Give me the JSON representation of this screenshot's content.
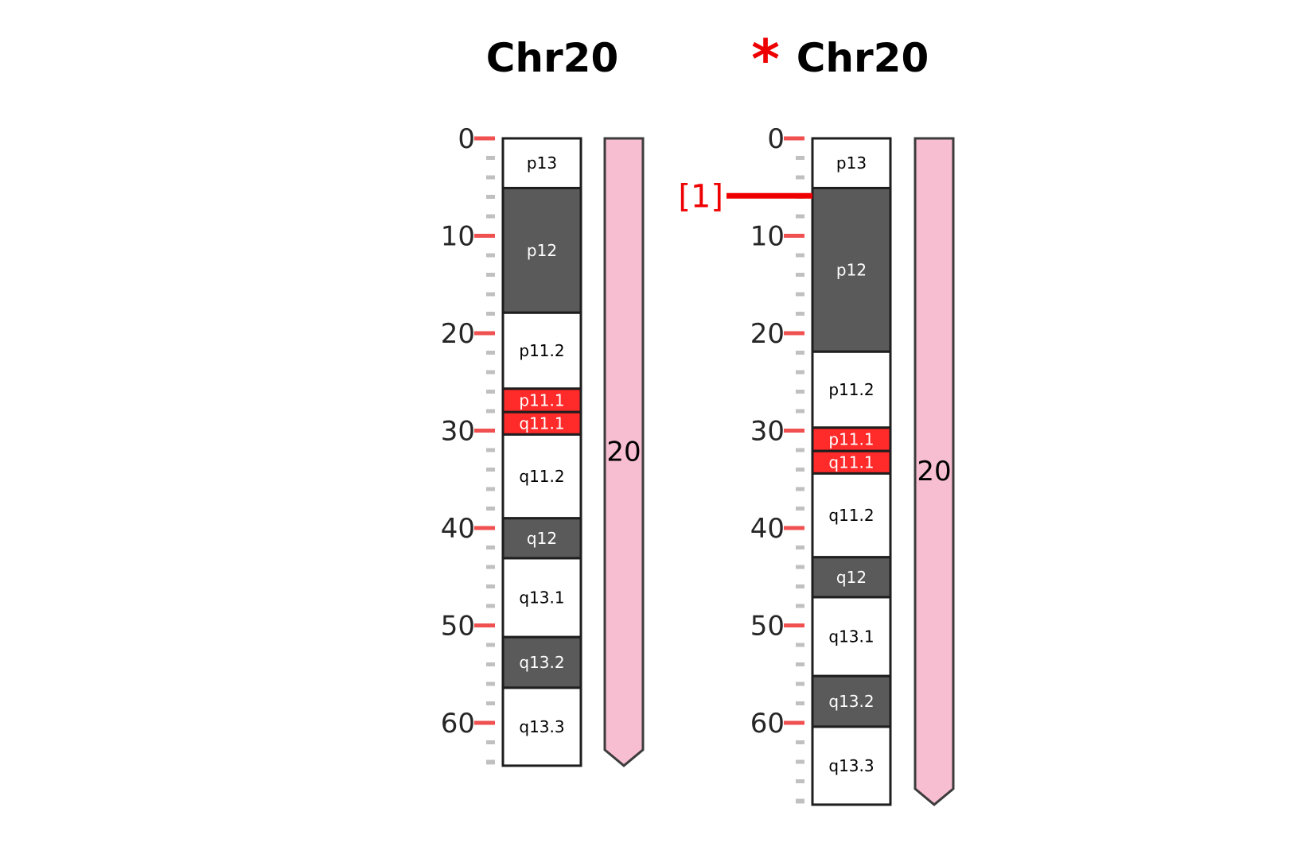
{
  "chart_data": [
    {
      "type": "ideogram",
      "title": "Chr20",
      "flagged": false,
      "ticks": [
        0,
        10,
        20,
        30,
        40,
        50,
        60
      ],
      "length": 64.4,
      "bands": [
        {
          "name": "p13",
          "start": 0,
          "end": 5.1,
          "stain": "white"
        },
        {
          "name": "p12",
          "start": 5.1,
          "end": 17.9,
          "stain": "dark"
        },
        {
          "name": "p11.2",
          "start": 17.9,
          "end": 25.7,
          "stain": "white"
        },
        {
          "name": "p11.1",
          "start": 25.7,
          "end": 28.1,
          "stain": "centromere"
        },
        {
          "name": "q11.1",
          "start": 28.1,
          "end": 30.4,
          "stain": "centromere"
        },
        {
          "name": "q11.2",
          "start": 30.4,
          "end": 39.0,
          "stain": "white"
        },
        {
          "name": "q12",
          "start": 39.0,
          "end": 43.1,
          "stain": "dark"
        },
        {
          "name": "q13.1",
          "start": 43.1,
          "end": 51.2,
          "stain": "white"
        },
        {
          "name": "q13.2",
          "start": 51.2,
          "end": 56.4,
          "stain": "dark"
        },
        {
          "name": "q13.3",
          "start": 56.4,
          "end": 64.4,
          "stain": "white"
        }
      ],
      "segment": {
        "label": "20",
        "start": 0,
        "end": 64.4
      },
      "markers": []
    },
    {
      "type": "ideogram",
      "title": "Chr20",
      "flagged": true,
      "flag_symbol": "*",
      "ticks": [
        0,
        10,
        20,
        30,
        40,
        50,
        60
      ],
      "length": 68.4,
      "bands": [
        {
          "name": "p13",
          "start": 0,
          "end": 5.1,
          "stain": "white"
        },
        {
          "name": "p12",
          "start": 5.1,
          "end": 21.9,
          "stain": "dark"
        },
        {
          "name": "p11.2",
          "start": 21.9,
          "end": 29.7,
          "stain": "white"
        },
        {
          "name": "p11.1",
          "start": 29.7,
          "end": 32.1,
          "stain": "centromere"
        },
        {
          "name": "q11.1",
          "start": 32.1,
          "end": 34.4,
          "stain": "centromere"
        },
        {
          "name": "q11.2",
          "start": 34.4,
          "end": 43.0,
          "stain": "white"
        },
        {
          "name": "q12",
          "start": 43.0,
          "end": 47.1,
          "stain": "dark"
        },
        {
          "name": "q13.1",
          "start": 47.1,
          "end": 55.2,
          "stain": "white"
        },
        {
          "name": "q13.2",
          "start": 55.2,
          "end": 60.4,
          "stain": "dark"
        },
        {
          "name": "q13.3",
          "start": 60.4,
          "end": 68.4,
          "stain": "white"
        }
      ],
      "segment": {
        "label": "20",
        "start": 0,
        "end": 68.4
      },
      "markers": [
        {
          "label": "[1]",
          "position": 5.9
        }
      ]
    }
  ],
  "colors": {
    "white_band": "#ffffff",
    "dark_band": "#5a5a5a",
    "centromere": "#ff2a2a",
    "segment_fill": "#f7bdd0",
    "segment_stroke": "#3c3c3c",
    "major_tick": "#f05050",
    "minor_tick": "#c0c0c0",
    "marker": "#ee0000",
    "flag": "#ee0000",
    "outline": "#1e1e1e"
  }
}
